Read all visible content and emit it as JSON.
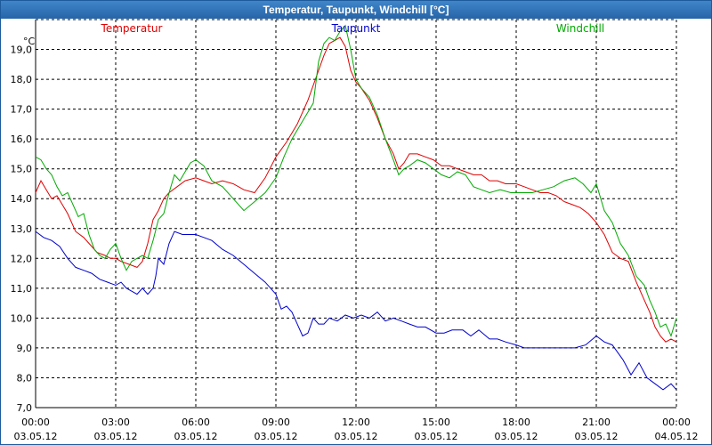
{
  "window": {
    "title": "Temperatur, Taupunkt, Windchill [°C]"
  },
  "chart_data": {
    "type": "line",
    "title": "Temperatur, Taupunkt, Windchill [°C]",
    "y_unit": "°C",
    "ylim": [
      7.0,
      20.0
    ],
    "xlim": [
      0,
      24
    ],
    "grid": true,
    "y_ticks": [
      {
        "value": 7.0,
        "label": "7,0"
      },
      {
        "value": 8.0,
        "label": "8,0"
      },
      {
        "value": 9.0,
        "label": "9,0"
      },
      {
        "value": 10.0,
        "label": "10,0"
      },
      {
        "value": 11.0,
        "label": "11,0"
      },
      {
        "value": 12.0,
        "label": "12,0"
      },
      {
        "value": 13.0,
        "label": "13,0"
      },
      {
        "value": 14.0,
        "label": "14,0"
      },
      {
        "value": 15.0,
        "label": "15,0"
      },
      {
        "value": 16.0,
        "label": "16,0"
      },
      {
        "value": 17.0,
        "label": "17,0"
      },
      {
        "value": 18.0,
        "label": "18,0"
      },
      {
        "value": 19.0,
        "label": "19,0"
      }
    ],
    "x_ticks": [
      {
        "value": 0,
        "time": "00:00",
        "date": "03.05.12"
      },
      {
        "value": 3,
        "time": "03:00",
        "date": "03.05.12"
      },
      {
        "value": 6,
        "time": "06:00",
        "date": "03.05.12"
      },
      {
        "value": 9,
        "time": "09:00",
        "date": "03.05.12"
      },
      {
        "value": 12,
        "time": "12:00",
        "date": "03.05.12"
      },
      {
        "value": 15,
        "time": "15:00",
        "date": "03.05.12"
      },
      {
        "value": 18,
        "time": "18:00",
        "date": "03.05.12"
      },
      {
        "value": 21,
        "time": "21:00",
        "date": "03.05.12"
      },
      {
        "value": 24,
        "time": "00:00",
        "date": "04.05.12"
      }
    ],
    "series": [
      {
        "name": "Temperatur",
        "color": "#e00000",
        "legend_position": "left",
        "x": [
          0,
          0.2,
          0.4,
          0.6,
          0.8,
          1.0,
          1.2,
          1.5,
          1.8,
          2.0,
          2.3,
          2.6,
          2.8,
          3.0,
          3.2,
          3.5,
          3.8,
          4.0,
          4.2,
          4.4,
          4.6,
          4.8,
          5.0,
          5.3,
          5.6,
          6.0,
          6.3,
          6.6,
          7.0,
          7.4,
          7.8,
          8.2,
          8.6,
          9.0,
          9.4,
          9.8,
          10.2,
          10.6,
          10.8,
          11.0,
          11.2,
          11.4,
          11.6,
          11.8,
          12.0,
          12.2,
          12.5,
          12.8,
          13.1,
          13.4,
          13.6,
          13.8,
          14.0,
          14.3,
          14.6,
          14.9,
          15.2,
          15.5,
          15.8,
          16.1,
          16.4,
          16.7,
          17.0,
          17.3,
          17.6,
          18.0,
          18.3,
          18.6,
          18.9,
          19.2,
          19.5,
          19.8,
          20.1,
          20.4,
          20.7,
          21.0,
          21.3,
          21.6,
          21.9,
          22.2,
          22.5,
          22.8,
          23.0,
          23.2,
          23.4,
          23.6,
          23.8,
          24.0
        ],
        "values": [
          14.2,
          14.6,
          14.3,
          14.0,
          14.1,
          13.8,
          13.5,
          12.9,
          12.7,
          12.5,
          12.2,
          12.1,
          12.0,
          12.0,
          11.9,
          11.8,
          11.7,
          11.9,
          12.5,
          13.3,
          13.6,
          14.0,
          14.2,
          14.4,
          14.6,
          14.7,
          14.6,
          14.5,
          14.6,
          14.5,
          14.3,
          14.2,
          14.7,
          15.4,
          15.9,
          16.5,
          17.3,
          18.3,
          18.8,
          19.2,
          19.3,
          19.4,
          19.1,
          18.3,
          17.9,
          17.7,
          17.3,
          16.7,
          16.0,
          15.5,
          15.0,
          15.2,
          15.5,
          15.5,
          15.4,
          15.3,
          15.1,
          15.1,
          15.0,
          14.9,
          14.8,
          14.8,
          14.6,
          14.6,
          14.5,
          14.5,
          14.4,
          14.3,
          14.2,
          14.2,
          14.1,
          13.9,
          13.8,
          13.7,
          13.5,
          13.2,
          12.8,
          12.2,
          12.0,
          11.9,
          11.2,
          10.6,
          10.2,
          9.7,
          9.4,
          9.2,
          9.3,
          9.2
        ]
      },
      {
        "name": "Taupunkt",
        "color": "#0000cc",
        "legend_position": "center",
        "x": [
          0,
          0.3,
          0.6,
          0.9,
          1.2,
          1.5,
          1.8,
          2.1,
          2.4,
          2.7,
          3.0,
          3.2,
          3.4,
          3.6,
          3.8,
          4.0,
          4.2,
          4.4,
          4.5,
          4.6,
          4.8,
          5.0,
          5.2,
          5.5,
          5.8,
          6.0,
          6.3,
          6.6,
          7.0,
          7.4,
          7.8,
          8.2,
          8.6,
          9.0,
          9.2,
          9.4,
          9.6,
          9.8,
          10.0,
          10.2,
          10.4,
          10.6,
          10.8,
          11.0,
          11.3,
          11.6,
          11.9,
          12.2,
          12.5,
          12.8,
          13.1,
          13.4,
          13.7,
          14.0,
          14.3,
          14.6,
          15.0,
          15.3,
          15.6,
          16.0,
          16.3,
          16.6,
          17.0,
          17.3,
          17.6,
          18.0,
          18.3,
          18.6,
          19.0,
          19.4,
          19.8,
          20.2,
          20.6,
          21.0,
          21.3,
          21.6,
          22.0,
          22.3,
          22.6,
          22.9,
          23.2,
          23.5,
          23.8,
          24.0
        ],
        "values": [
          12.9,
          12.7,
          12.6,
          12.4,
          12.0,
          11.7,
          11.6,
          11.5,
          11.3,
          11.2,
          11.1,
          11.2,
          11.0,
          10.9,
          10.8,
          11.0,
          10.8,
          11.0,
          11.4,
          12.0,
          11.8,
          12.5,
          12.9,
          12.8,
          12.8,
          12.8,
          12.7,
          12.6,
          12.3,
          12.1,
          11.8,
          11.5,
          11.2,
          10.8,
          10.3,
          10.4,
          10.2,
          9.8,
          9.4,
          9.5,
          10.0,
          9.8,
          9.8,
          10.0,
          9.9,
          10.1,
          10.0,
          10.1,
          10.0,
          10.2,
          9.9,
          10.0,
          9.9,
          9.8,
          9.7,
          9.7,
          9.5,
          9.5,
          9.6,
          9.6,
          9.4,
          9.6,
          9.3,
          9.3,
          9.2,
          9.1,
          9.0,
          9.0,
          9.0,
          9.0,
          9.0,
          9.0,
          9.1,
          9.4,
          9.2,
          9.1,
          8.6,
          8.1,
          8.5,
          8.0,
          7.8,
          7.6,
          7.8,
          7.6
        ]
      },
      {
        "name": "Windchill",
        "color": "#00aa00",
        "legend_position": "right",
        "x": [
          0,
          0.2,
          0.4,
          0.6,
          0.8,
          1.0,
          1.2,
          1.4,
          1.6,
          1.8,
          2.0,
          2.2,
          2.4,
          2.6,
          2.8,
          3.0,
          3.2,
          3.4,
          3.6,
          3.8,
          4.0,
          4.2,
          4.4,
          4.6,
          4.8,
          5.0,
          5.2,
          5.4,
          5.6,
          5.8,
          6.0,
          6.3,
          6.6,
          7.0,
          7.4,
          7.8,
          8.2,
          8.6,
          9.0,
          9.3,
          9.6,
          10.0,
          10.4,
          10.6,
          10.8,
          11.0,
          11.2,
          11.4,
          11.6,
          11.8,
          12.0,
          12.2,
          12.5,
          12.8,
          13.1,
          13.4,
          13.6,
          13.8,
          14.0,
          14.3,
          14.6,
          14.9,
          15.2,
          15.5,
          15.8,
          16.1,
          16.4,
          16.7,
          17.0,
          17.4,
          17.8,
          18.2,
          18.6,
          19.0,
          19.4,
          19.8,
          20.2,
          20.5,
          20.8,
          21.0,
          21.3,
          21.6,
          21.9,
          22.2,
          22.5,
          22.8,
          23.0,
          23.2,
          23.4,
          23.6,
          23.8,
          24.0
        ],
        "values": [
          15.4,
          15.3,
          15.0,
          14.8,
          14.4,
          14.1,
          14.2,
          13.8,
          13.4,
          13.5,
          12.8,
          12.3,
          12.1,
          12.0,
          12.3,
          12.5,
          12.0,
          11.6,
          11.9,
          12.0,
          12.1,
          12.0,
          12.6,
          13.3,
          13.5,
          14.2,
          14.8,
          14.6,
          14.9,
          15.2,
          15.3,
          15.1,
          14.6,
          14.4,
          14.0,
          13.6,
          13.9,
          14.2,
          14.7,
          15.4,
          16.0,
          16.6,
          17.2,
          18.6,
          19.2,
          19.4,
          19.3,
          19.6,
          19.8,
          19.0,
          18.0,
          17.7,
          17.4,
          16.8,
          16.0,
          15.3,
          14.8,
          15.0,
          15.1,
          15.3,
          15.2,
          15.0,
          14.8,
          14.7,
          14.9,
          14.8,
          14.4,
          14.3,
          14.2,
          14.3,
          14.2,
          14.2,
          14.2,
          14.3,
          14.4,
          14.6,
          14.7,
          14.5,
          14.2,
          14.5,
          13.6,
          13.2,
          12.5,
          12.1,
          11.4,
          11.1,
          10.6,
          10.2,
          9.7,
          9.8,
          9.4,
          10.0
        ]
      }
    ]
  }
}
